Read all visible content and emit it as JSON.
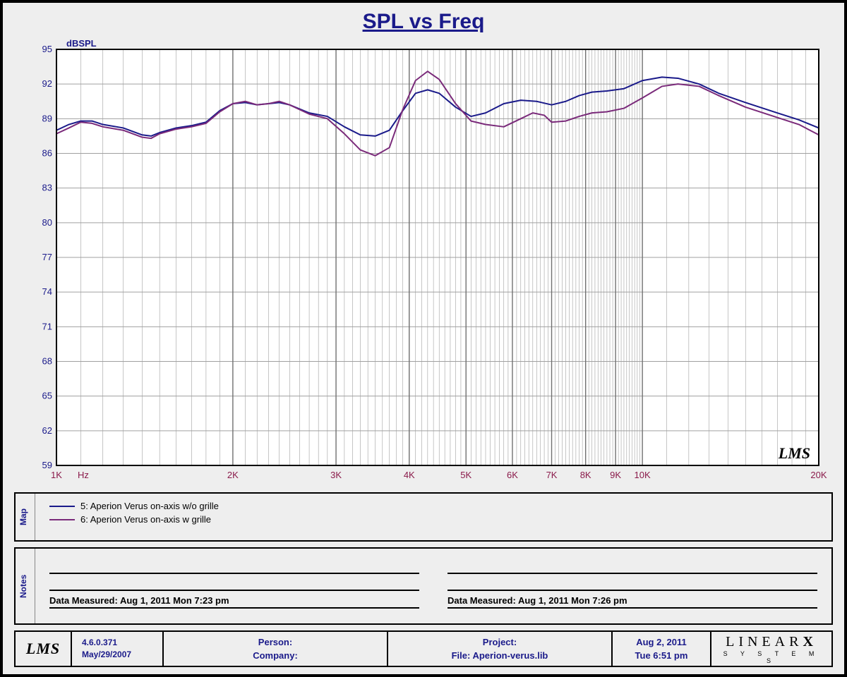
{
  "title": "SPL vs Freq",
  "chart": {
    "type": "line",
    "background_color": "#ffffff",
    "frame_color": "#000000",
    "outer_bg": "#eeeeee",
    "y_label": "dBSPL",
    "y_label_color": "#1a1a8a",
    "x_unit": "Hz",
    "x_label_color": "#8a1a4a",
    "y_tick_color": "#1a1a8a",
    "x_tick_color": "#8a1a4a",
    "grid_color": "#a0a0a0",
    "ylim": [
      59,
      95
    ],
    "ytick_step": 3,
    "yticks": [
      59,
      62,
      65,
      68,
      71,
      74,
      77,
      80,
      83,
      86,
      89,
      92,
      95
    ],
    "xlim": [
      1000,
      20000
    ],
    "xscale": "log",
    "x_major_ticks": [
      1000,
      2000,
      3000,
      4000,
      5000,
      6000,
      7000,
      8000,
      9000,
      10000,
      20000
    ],
    "x_major_labels": [
      "1K",
      "2K",
      "3K",
      "4K",
      "5K",
      "6K",
      "7K",
      "8K",
      "9K",
      "10K",
      "20K"
    ],
    "x_minor_every_log": true,
    "watermark_text": "LMS",
    "series": [
      {
        "name": "5: Aperion Verus on-axis w/o grille",
        "color": "#1a1a8a",
        "width": 2,
        "points": [
          [
            1000,
            88.0
          ],
          [
            1050,
            88.5
          ],
          [
            1100,
            88.8
          ],
          [
            1150,
            88.8
          ],
          [
            1200,
            88.5
          ],
          [
            1300,
            88.2
          ],
          [
            1400,
            87.6
          ],
          [
            1450,
            87.5
          ],
          [
            1500,
            87.8
          ],
          [
            1600,
            88.2
          ],
          [
            1700,
            88.4
          ],
          [
            1800,
            88.7
          ],
          [
            1900,
            89.7
          ],
          [
            2000,
            90.3
          ],
          [
            2100,
            90.4
          ],
          [
            2200,
            90.2
          ],
          [
            2300,
            90.3
          ],
          [
            2400,
            90.4
          ],
          [
            2500,
            90.2
          ],
          [
            2700,
            89.5
          ],
          [
            2900,
            89.2
          ],
          [
            3100,
            88.3
          ],
          [
            3300,
            87.6
          ],
          [
            3500,
            87.5
          ],
          [
            3700,
            88.0
          ],
          [
            3900,
            89.7
          ],
          [
            4100,
            91.2
          ],
          [
            4300,
            91.5
          ],
          [
            4500,
            91.2
          ],
          [
            4800,
            90.0
          ],
          [
            5100,
            89.2
          ],
          [
            5400,
            89.5
          ],
          [
            5800,
            90.3
          ],
          [
            6200,
            90.6
          ],
          [
            6600,
            90.5
          ],
          [
            7000,
            90.2
          ],
          [
            7400,
            90.5
          ],
          [
            7800,
            91.0
          ],
          [
            8200,
            91.3
          ],
          [
            8700,
            91.4
          ],
          [
            9300,
            91.6
          ],
          [
            10000,
            92.3
          ],
          [
            10800,
            92.6
          ],
          [
            11500,
            92.5
          ],
          [
            12500,
            92.0
          ],
          [
            13500,
            91.2
          ],
          [
            15000,
            90.4
          ],
          [
            17000,
            89.5
          ],
          [
            18500,
            88.9
          ],
          [
            20000,
            88.2
          ]
        ]
      },
      {
        "name": "6: Aperion Verus on-axis w grille",
        "color": "#7a2a7a",
        "width": 2,
        "points": [
          [
            1000,
            87.7
          ],
          [
            1050,
            88.2
          ],
          [
            1100,
            88.7
          ],
          [
            1150,
            88.6
          ],
          [
            1200,
            88.3
          ],
          [
            1300,
            88.0
          ],
          [
            1400,
            87.4
          ],
          [
            1450,
            87.3
          ],
          [
            1500,
            87.7
          ],
          [
            1600,
            88.1
          ],
          [
            1700,
            88.3
          ],
          [
            1800,
            88.6
          ],
          [
            1900,
            89.6
          ],
          [
            2000,
            90.3
          ],
          [
            2100,
            90.5
          ],
          [
            2200,
            90.2
          ],
          [
            2300,
            90.3
          ],
          [
            2400,
            90.5
          ],
          [
            2500,
            90.2
          ],
          [
            2700,
            89.4
          ],
          [
            2900,
            89.0
          ],
          [
            3100,
            87.7
          ],
          [
            3300,
            86.3
          ],
          [
            3500,
            85.8
          ],
          [
            3700,
            86.5
          ],
          [
            3900,
            89.8
          ],
          [
            4100,
            92.3
          ],
          [
            4300,
            93.1
          ],
          [
            4500,
            92.4
          ],
          [
            4800,
            90.3
          ],
          [
            5100,
            88.8
          ],
          [
            5400,
            88.5
          ],
          [
            5800,
            88.3
          ],
          [
            6200,
            89.0
          ],
          [
            6500,
            89.5
          ],
          [
            6800,
            89.3
          ],
          [
            7000,
            88.7
          ],
          [
            7400,
            88.8
          ],
          [
            7800,
            89.2
          ],
          [
            8200,
            89.5
          ],
          [
            8700,
            89.6
          ],
          [
            9300,
            89.9
          ],
          [
            10000,
            90.8
          ],
          [
            10800,
            91.8
          ],
          [
            11500,
            92.0
          ],
          [
            12500,
            91.8
          ],
          [
            13500,
            91.0
          ],
          [
            15000,
            90.0
          ],
          [
            17000,
            89.1
          ],
          [
            18500,
            88.5
          ],
          [
            20000,
            87.6
          ]
        ]
      }
    ]
  },
  "legend": {
    "side_label": "Map",
    "items": [
      {
        "color": "#1a1a8a",
        "label": "5: Aperion Verus on-axis w/o grille"
      },
      {
        "color": "#7a2a7a",
        "label": "6: Aperion Verus on-axis w grille"
      }
    ]
  },
  "notes": {
    "side_label": "Notes",
    "measured_left": "Data Measured: Aug  1, 2011 Mon  7:23 pm",
    "measured_right": "Data Measured: Aug  1, 2011 Mon  7:26 pm"
  },
  "footer": {
    "logo": "LMS",
    "version": "4.6.0.371",
    "build_date": "May/29/2007",
    "person_label": "Person:",
    "company_label": "Company:",
    "project_label": "Project:",
    "file_label": "File: Aperion-verus.lib",
    "date_line1": "Aug  2, 2011",
    "date_line2": "Tue  6:51 pm",
    "brand": "LINEARX",
    "brand_sub": "S Y S T E M S"
  }
}
